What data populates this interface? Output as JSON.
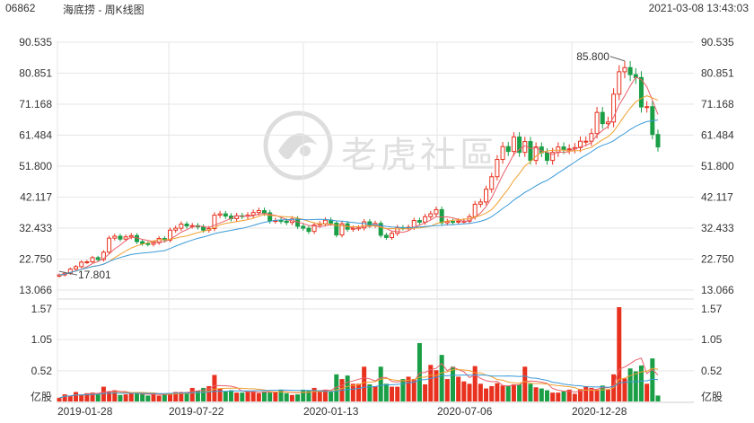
{
  "header": {
    "code": "06862",
    "name": "海底捞 - 周K线图",
    "datetime": "2021-03-08 13:43:03"
  },
  "watermark": {
    "text": "老虎社區"
  },
  "colors": {
    "up": "#e8311e",
    "down": "#1a9e46",
    "ma5": "#e8606a",
    "ma10": "#f0a030",
    "ma20": "#3a9ad9",
    "grid": "#e6e6e6"
  },
  "chart_data": {
    "type": "candlestick",
    "price_axis": {
      "ticks": [
        "90.535",
        "80.851",
        "71.168",
        "61.484",
        "51.800",
        "42.117",
        "32.433",
        "22.750",
        "13.066"
      ],
      "min": 13.066,
      "max": 90.535
    },
    "volume_axis": {
      "ticks": [
        "1.57",
        "1.05",
        "0.52"
      ],
      "unit": "亿股",
      "min": 0,
      "max": 1.57
    },
    "x_ticks": [
      "2019-01-28",
      "2019-07-22",
      "2020-01-13",
      "2020-07-06",
      "2020-12-28"
    ],
    "annotations": {
      "high": "85.800",
      "low": "17.801"
    },
    "closes": [
      17.8,
      18.3,
      19.6,
      20.4,
      21.8,
      21.9,
      23.2,
      22.6,
      24.9,
      29.3,
      29.9,
      29.0,
      29.7,
      30.1,
      28.2,
      27.6,
      27.4,
      27.9,
      29.2,
      28.7,
      31.8,
      32.4,
      33.7,
      33.1,
      33.2,
      32.8,
      31.8,
      32.3,
      36.5,
      36.9,
      36.2,
      35.4,
      36.3,
      36.1,
      36.5,
      37.3,
      37.9,
      37.2,
      34.7,
      34.8,
      34.6,
      34.2,
      35.3,
      33.0,
      32.4,
      31.4,
      33.4,
      33.8,
      34.9,
      34.0,
      30.3,
      33.8,
      32.1,
      32.4,
      32.5,
      34.4,
      33.3,
      33.9,
      30.2,
      29.5,
      30.8,
      32.6,
      32.5,
      32.7,
      34.8,
      34.3,
      36.0,
      36.9,
      38.2,
      34.1,
      34.5,
      34.4,
      34.6,
      34.6,
      36.0,
      39.9,
      40.6,
      44.6,
      48.5,
      53.9,
      57.9,
      56.4,
      60.9,
      56.1,
      59.5,
      53.6,
      57.8,
      56.0,
      53.6,
      56.1,
      57.8,
      57.0,
      57.2,
      57.6,
      59.6,
      59.6,
      62.0,
      68.6,
      65.1,
      65.6,
      74.3,
      81.3,
      82.6,
      80.4,
      79.5,
      70.3,
      70.4,
      61.7,
      57.8
    ],
    "volumes": [
      0.06,
      0.12,
      0.1,
      0.16,
      0.11,
      0.14,
      0.15,
      0.13,
      0.25,
      0.17,
      0.19,
      0.11,
      0.12,
      0.14,
      0.13,
      0.13,
      0.1,
      0.13,
      0.1,
      0.13,
      0.14,
      0.16,
      0.16,
      0.16,
      0.23,
      0.18,
      0.23,
      0.26,
      0.45,
      0.22,
      0.17,
      0.19,
      0.15,
      0.15,
      0.16,
      0.17,
      0.14,
      0.17,
      0.15,
      0.16,
      0.2,
      0.14,
      0.11,
      0.12,
      0.2,
      0.19,
      0.23,
      0.17,
      0.19,
      0.16,
      0.46,
      0.38,
      0.44,
      0.3,
      0.3,
      0.59,
      0.29,
      0.26,
      0.59,
      0.3,
      0.25,
      0.25,
      0.38,
      0.42,
      0.38,
      0.99,
      0.29,
      0.62,
      0.53,
      0.79,
      0.38,
      0.59,
      0.42,
      0.34,
      0.3,
      0.6,
      0.3,
      0.22,
      0.26,
      0.31,
      0.27,
      0.26,
      0.29,
      0.29,
      0.59,
      0.3,
      0.24,
      0.22,
      0.19,
      0.15,
      0.15,
      0.17,
      0.2,
      0.13,
      0.21,
      0.26,
      0.23,
      0.2,
      0.27,
      0.2,
      0.46,
      1.6,
      0.39,
      0.56,
      0.51,
      0.61,
      0.3,
      0.73,
      0.1
    ]
  }
}
